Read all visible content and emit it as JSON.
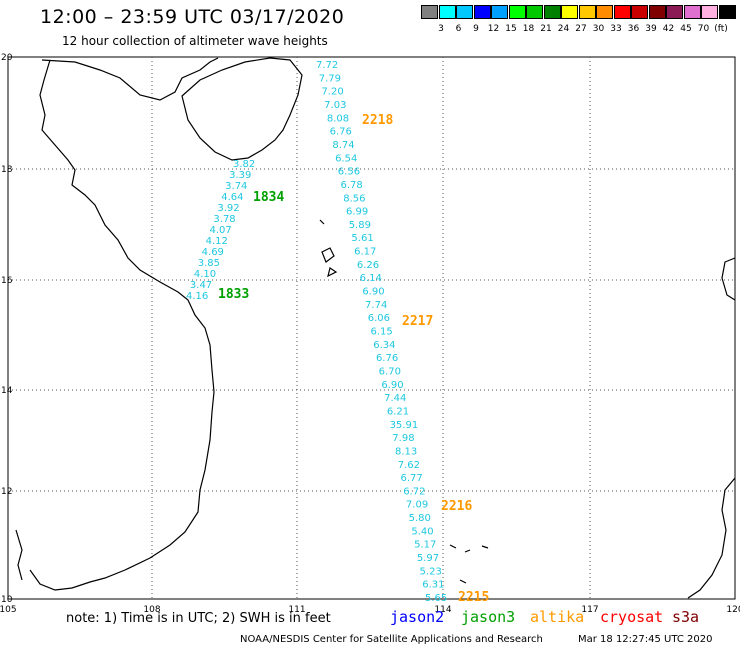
{
  "header": {
    "title": "12:00 – 23:59 UTC 03/17/2020",
    "subtitle": "12 hour collection of altimeter wave heights"
  },
  "legend": {
    "colors": [
      "#808080",
      "#00ffff",
      "#00c8ff",
      "#0000ff",
      "#00a0ff",
      "#00ff00",
      "#00c800",
      "#008000",
      "#ffff00",
      "#ffc800",
      "#ff8c00",
      "#ff0000",
      "#c80000",
      "#800000",
      "#8b1a55",
      "#e070d0",
      "#ffb0e0",
      "#000000"
    ],
    "labels": [
      "3",
      "6",
      "9",
      "12",
      "15",
      "18",
      "21",
      "24",
      "27",
      "30",
      "33",
      "36",
      "39",
      "42",
      "45",
      "70",
      "(ft)"
    ]
  },
  "map": {
    "lat_labels": [
      "20",
      "18",
      "16",
      "14",
      "12",
      "10"
    ],
    "lon_labels": [
      "105",
      "108",
      "111",
      "114",
      "117",
      "120"
    ],
    "tracks": [
      {
        "satellite": "jason3",
        "pass_labels": [
          "1834",
          "1833"
        ],
        "values": [
          "3.82",
          "3.39",
          "3.74",
          "4.64",
          "3.92",
          "3.78",
          "4.07",
          "4.12",
          "4.69",
          "3.85",
          "4.10",
          "3.47",
          "4.16"
        ]
      },
      {
        "satellite": "altika",
        "pass_labels": [
          "2218",
          "2217",
          "2216",
          "2215"
        ],
        "values": [
          "7.72",
          "7.79",
          "7.20",
          "7.03",
          "8.08",
          "6.76",
          "8.74",
          "6.54",
          "6.56",
          "6.78",
          "8.56",
          "6.99",
          "5.89",
          "5.61",
          "6.17",
          "6.26",
          "6.14",
          "6.90",
          "7.74",
          "6.06",
          "6.15",
          "6.34",
          "6.76",
          "6.70",
          "6.90",
          "7.44",
          "6.21",
          "35.91",
          "7.98",
          "8.13",
          "7.62",
          "6.77",
          "6.72",
          "7.09",
          "5.80",
          "5.40",
          "5.17",
          "5.97",
          "5.23",
          "6.31",
          "5.65"
        ]
      }
    ]
  },
  "footer": {
    "note": "note: 1) Time is in UTC; 2) SWH is in feet",
    "satellites": [
      {
        "name": "jason2",
        "color": "#0000ff"
      },
      {
        "name": "jason3",
        "color": "#00a000"
      },
      {
        "name": "altika",
        "color": "#ff9900"
      },
      {
        "name": "cryosat",
        "color": "#ff0000"
      },
      {
        "name": "s3a",
        "color": "#800000"
      }
    ],
    "credit": "NOAA/NESDIS Center for Satellite Applications and Research",
    "timestamp": "Mar 18 12:27:45 UTC 2020"
  }
}
